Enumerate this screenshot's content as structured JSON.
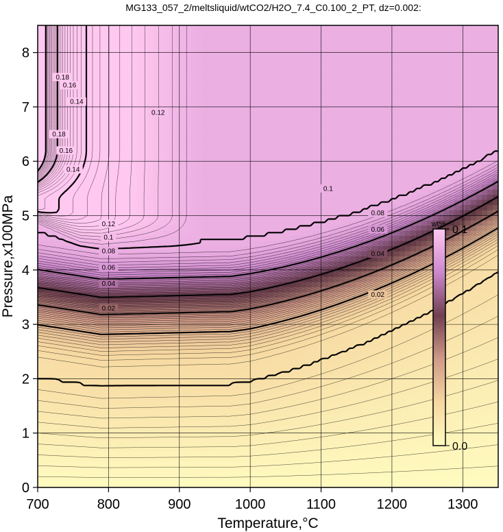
{
  "chart_data": {
    "type": "heatmap",
    "title": "MG133_057_2/meltsliquid/wtCO2/H2O_7.4_C0.100_2_PT, dz=0.002:",
    "xlabel": "Temperature,°C",
    "ylabel": "Pressure,x100MPa",
    "xlim": [
      700,
      1350
    ],
    "ylim": [
      0,
      8.5
    ],
    "x_ticks": [
      "700",
      "800",
      "900",
      "1000",
      "1100",
      "1200",
      "1300"
    ],
    "y_ticks": [
      "0",
      "1",
      "2",
      "3",
      "4",
      "5",
      "6",
      "7",
      "8"
    ],
    "grid": true,
    "contour_interval": 0.002,
    "colorbar": {
      "unit": "wt%",
      "min_label": "0.0",
      "max_label": "0.1",
      "colors": [
        "#fffbc0",
        "#f6d7a0",
        "#d09a88",
        "#704050",
        "#cc88cc",
        "#ffc8f0"
      ]
    },
    "contour_labels": [
      {
        "text": "0.02",
        "x": 800,
        "y": 3.3
      },
      {
        "text": "0.04",
        "x": 800,
        "y": 3.75
      },
      {
        "text": "0.06",
        "x": 800,
        "y": 4.05
      },
      {
        "text": "0.08",
        "x": 800,
        "y": 4.35
      },
      {
        "text": "0.1",
        "x": 800,
        "y": 4.6
      },
      {
        "text": "0.12",
        "x": 800,
        "y": 4.85
      },
      {
        "text": "0.02",
        "x": 1180,
        "y": 3.55
      },
      {
        "text": "0.04",
        "x": 1180,
        "y": 4.3
      },
      {
        "text": "0.06",
        "x": 1180,
        "y": 4.75
      },
      {
        "text": "0.08",
        "x": 1180,
        "y": 5.05
      },
      {
        "text": "0.12",
        "x": 870,
        "y": 6.9
      },
      {
        "text": "0.1",
        "x": 1110,
        "y": 5.5
      },
      {
        "text": "0.14",
        "x": 755,
        "y": 7.1
      },
      {
        "text": "0.16",
        "x": 745,
        "y": 7.4
      },
      {
        "text": "0.18",
        "x": 735,
        "y": 7.55
      },
      {
        "text": "0.14",
        "x": 750,
        "y": 5.85
      },
      {
        "text": "0.16",
        "x": 740,
        "y": 6.2
      },
      {
        "text": "0.18",
        "x": 730,
        "y": 6.5
      }
    ]
  }
}
